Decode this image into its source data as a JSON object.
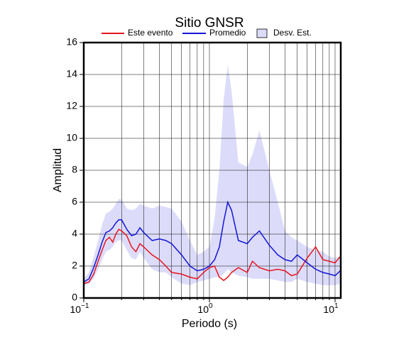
{
  "chart_data": {
    "type": "line",
    "title": "Sitio GNSR",
    "xlabel": "Periodo (s)",
    "ylabel": "Amplitud",
    "log_x": true,
    "grid": true,
    "xlim": [
      0.1,
      11.1
    ],
    "ylim": [
      0,
      16
    ],
    "xticks": [
      {
        "value": 0.1,
        "label": "10",
        "exp": "−1"
      },
      {
        "value": 1,
        "label": "10",
        "exp": "0"
      },
      {
        "value": 10,
        "label": "10",
        "exp": "1"
      }
    ],
    "xminorticks": [
      0.2,
      0.3,
      0.4,
      0.5,
      0.6,
      0.7,
      0.8,
      0.9,
      2,
      3,
      4,
      5,
      6,
      7,
      8,
      9
    ],
    "yticks": [
      0,
      2,
      4,
      6,
      8,
      10,
      12,
      14,
      16
    ],
    "x": [
      0.1,
      0.11,
      0.12,
      0.13,
      0.14,
      0.15,
      0.16,
      0.17,
      0.18,
      0.19,
      0.2,
      0.22,
      0.24,
      0.26,
      0.28,
      0.3,
      0.35,
      0.4,
      0.45,
      0.5,
      0.6,
      0.7,
      0.8,
      0.9,
      1.0,
      1.1,
      1.2,
      1.3,
      1.4,
      1.5,
      1.7,
      2.0,
      2.2,
      2.5,
      3.0,
      3.5,
      4.0,
      4.5,
      5.0,
      6.0,
      7.0,
      8.0,
      9.0,
      10,
      11
    ],
    "band": {
      "name": "Desv. Est.",
      "color": "#dcdcfa",
      "upper": [
        1.2,
        1.6,
        2.6,
        3.6,
        4.6,
        5.3,
        5.4,
        5.6,
        5.9,
        6.2,
        6.2,
        5.6,
        5.5,
        5.6,
        5.9,
        5.8,
        5.6,
        5.8,
        5.7,
        5.6,
        4.8,
        3.6,
        2.7,
        2.9,
        3.2,
        5.0,
        8.0,
        12.5,
        14.6,
        13.0,
        8.5,
        8.2,
        9.0,
        10.5,
        8.0,
        6.0,
        4.2,
        3.8,
        3.6,
        3.2,
        3.0,
        2.9,
        2.6,
        2.5,
        2.6
      ],
      "lower": [
        0.8,
        0.9,
        1.2,
        1.8,
        2.4,
        2.9,
        3.0,
        3.2,
        3.5,
        3.6,
        3.6,
        3.0,
        2.5,
        2.4,
        2.9,
        2.5,
        1.8,
        1.6,
        1.6,
        1.3,
        0.9,
        0.8,
        1.0,
        1.1,
        1.2,
        1.3,
        1.3,
        1.5,
        1.8,
        1.6,
        1.4,
        1.3,
        1.2,
        1.2,
        1.2,
        1.1,
        1.0,
        1.0,
        1.2,
        1.0,
        0.9,
        0.8,
        0.8,
        0.8,
        0.9
      ]
    },
    "series": [
      {
        "name": "Este evento",
        "color": "#e8141c",
        "values": [
          0.9,
          1.0,
          1.5,
          2.3,
          3.0,
          3.6,
          3.8,
          3.5,
          4.0,
          4.3,
          4.2,
          3.9,
          3.2,
          2.9,
          3.4,
          3.2,
          2.7,
          2.4,
          2.0,
          1.6,
          1.5,
          1.3,
          1.2,
          1.6,
          1.9,
          2.0,
          1.3,
          1.1,
          1.3,
          1.6,
          1.9,
          1.6,
          2.3,
          1.9,
          1.7,
          1.8,
          1.7,
          1.4,
          1.5,
          2.5,
          3.2,
          2.4,
          2.3,
          2.2,
          2.6
        ]
      },
      {
        "name": "Promedio",
        "color": "#1414d8",
        "values": [
          1.0,
          1.2,
          1.9,
          2.7,
          3.5,
          4.1,
          4.2,
          4.4,
          4.7,
          4.9,
          4.9,
          4.3,
          3.9,
          4.0,
          4.4,
          4.1,
          3.6,
          3.7,
          3.6,
          3.4,
          2.7,
          2.0,
          1.7,
          1.8,
          2.0,
          2.4,
          3.2,
          4.8,
          6.0,
          5.5,
          3.6,
          3.4,
          3.8,
          4.2,
          3.3,
          2.7,
          2.4,
          2.3,
          2.7,
          2.2,
          1.8,
          1.6,
          1.5,
          1.4,
          1.7
        ]
      }
    ]
  }
}
